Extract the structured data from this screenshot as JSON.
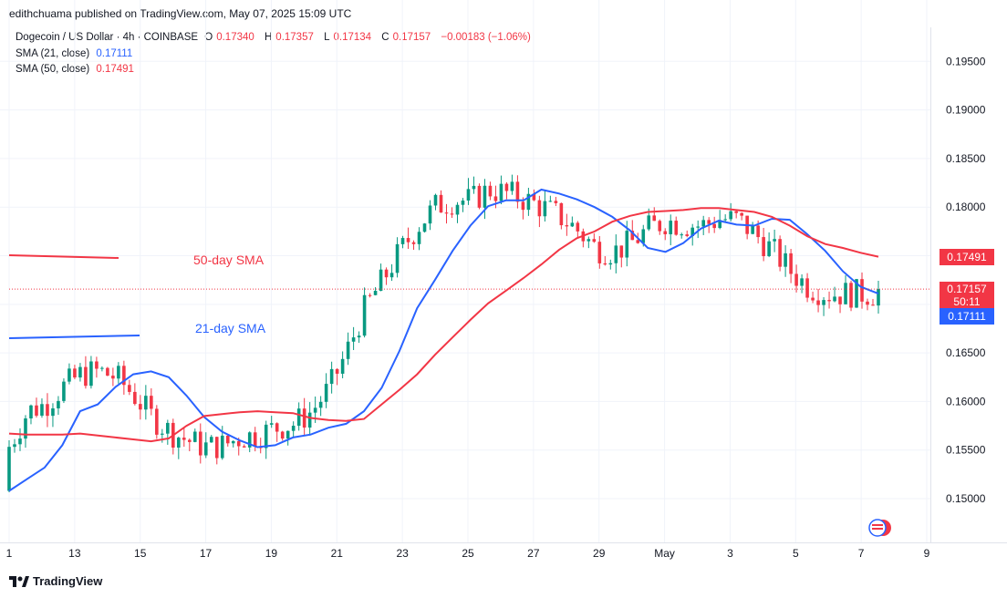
{
  "publisher": "edithchuama published on TradingView.com, May 07, 2025 15:09 UTC",
  "legend": {
    "symbol": "Dogecoin / US Dollar · 4h · COINBASE",
    "o_label": "O",
    "o": "0.17340",
    "h_label": "H",
    "h": "0.17357",
    "l_label": "L",
    "l": "0.17134",
    "c_label": "C",
    "c": "0.17157",
    "change": "−0.00183 (−1.06%)",
    "sma21_label": "SMA (21, close)",
    "sma21_value": "0.17111",
    "sma50_label": "SMA (50, close)",
    "sma50_value": "0.17491"
  },
  "annotations": {
    "sma50": "50-day SMA",
    "sma21": "21-day SMA"
  },
  "badges": {
    "sma50": "0.17491",
    "price": "0.17157",
    "countdown": "50:11",
    "sma21": "0.17111"
  },
  "footer_brand": "TradingView",
  "colors": {
    "up": "#089981",
    "down": "#f23645",
    "sma21": "#2962ff",
    "sma50": "#f23645"
  },
  "chart_data": {
    "type": "candlestick",
    "ylim": [
      0.1455,
      0.1985
    ],
    "y_ticks": [
      "0.19500",
      "0.19000",
      "0.18500",
      "0.18000",
      "0.17500",
      "0.17000",
      "0.16500",
      "0.16000",
      "0.15500",
      "0.15000"
    ],
    "x_tick_labels": [
      "1",
      "13",
      "15",
      "17",
      "19",
      "21",
      "23",
      "25",
      "27",
      "29",
      "May",
      "3",
      "5",
      "7",
      "9"
    ],
    "grid": true,
    "series": [
      {
        "name": "SMA (21, close)",
        "values": [
          0.1508,
          0.152,
          0.1532,
          0.1555,
          0.159,
          0.1597,
          0.1615,
          0.1628,
          0.1631,
          0.1625,
          0.1606,
          0.1584,
          0.1569,
          0.156,
          0.1553,
          0.1555,
          0.1563,
          0.1566,
          0.1573,
          0.1577,
          0.159,
          0.1614,
          0.1652,
          0.1696,
          0.1725,
          0.1755,
          0.1781,
          0.1801,
          0.1807,
          0.1807,
          0.1818,
          0.1814,
          0.1808,
          0.18,
          0.179,
          0.1776,
          0.1758,
          0.1754,
          0.1763,
          0.1778,
          0.1786,
          0.1782,
          0.1781,
          0.1788,
          0.1787,
          0.1772,
          0.1755,
          0.1734,
          0.1718,
          0.1711
        ]
      },
      {
        "name": "SMA (50, close)",
        "values": [
          0.1567,
          0.1566,
          0.1566,
          0.1566,
          0.1567,
          0.1565,
          0.1563,
          0.1561,
          0.1559,
          0.1562,
          0.1575,
          0.1585,
          0.1587,
          0.1589,
          0.159,
          0.1589,
          0.1588,
          0.1583,
          0.1581,
          0.158,
          0.1582,
          0.1597,
          0.1612,
          0.1628,
          0.1648,
          0.1666,
          0.1684,
          0.1701,
          0.1714,
          0.1727,
          0.1741,
          0.1756,
          0.1768,
          0.1775,
          0.1785,
          0.1791,
          0.1795,
          0.1796,
          0.1797,
          0.1799,
          0.1799,
          0.1797,
          0.1795,
          0.179,
          0.1781,
          0.177,
          0.1762,
          0.1758,
          0.1753,
          0.1749
        ]
      }
    ]
  }
}
